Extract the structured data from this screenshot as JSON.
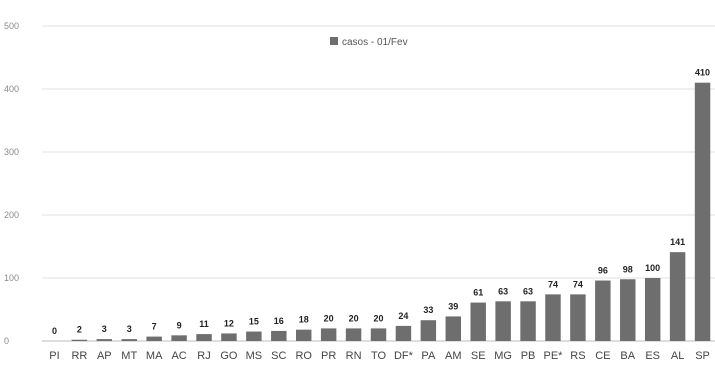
{
  "chart_data": {
    "type": "bar",
    "categories": [
      "PI",
      "RR",
      "AP",
      "MT",
      "MA",
      "AC",
      "RJ",
      "GO",
      "MS",
      "SC",
      "RO",
      "PR",
      "RN",
      "TO",
      "DF*",
      "PA",
      "AM",
      "SE",
      "MG",
      "PB",
      "PE*",
      "RS",
      "CE",
      "BA",
      "ES",
      "AL",
      "SP"
    ],
    "series": [
      {
        "name": "casos - 01/Fev",
        "values": [
          0,
          2,
          3,
          3,
          7,
          9,
          11,
          12,
          15,
          16,
          18,
          20,
          20,
          20,
          24,
          33,
          39,
          61,
          63,
          63,
          74,
          74,
          96,
          98,
          100,
          141,
          410
        ],
        "color": "#6e6e6e"
      }
    ],
    "data_labels": [
      "0",
      "2",
      "3",
      "3",
      "7",
      "9",
      "11",
      "12",
      "15",
      "16",
      "18",
      "20",
      "20",
      "20",
      "24",
      "33",
      "39",
      "61",
      "63",
      "63",
      "74",
      "74",
      "96",
      "98",
      "100",
      "141",
      "410"
    ],
    "yticks": [
      "0",
      "100",
      "200",
      "300",
      "400",
      "500"
    ],
    "ylim": [
      0,
      500
    ],
    "grid": true,
    "legend_position": "top-center"
  }
}
